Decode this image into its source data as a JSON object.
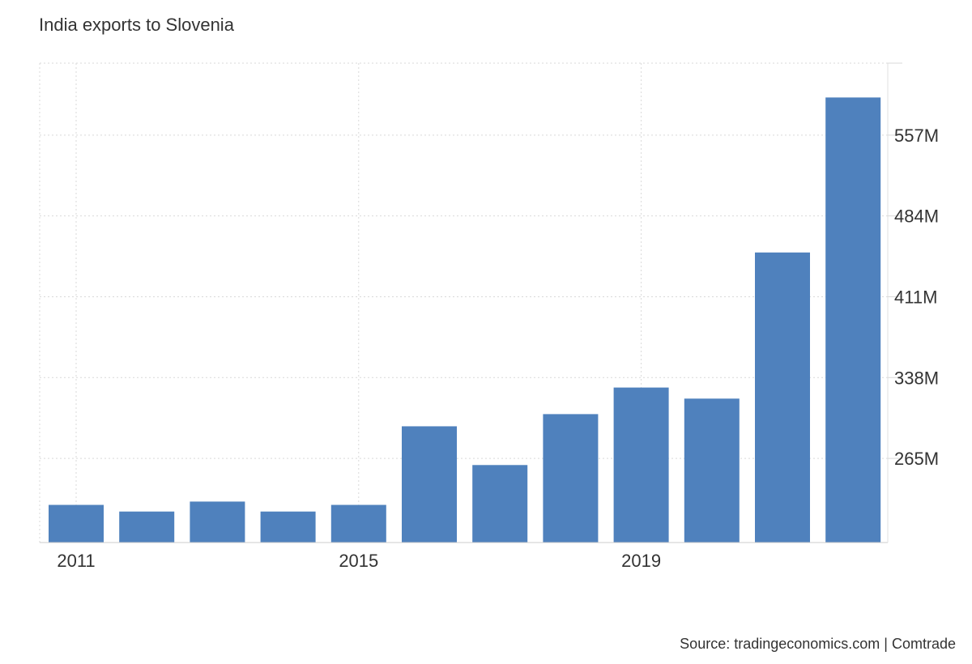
{
  "chart_data": {
    "type": "bar",
    "title": "India exports to Slovenia",
    "source": "Source: tradingeconomics.com | Comtrade",
    "x": [
      2011,
      2012,
      2013,
      2014,
      2015,
      2016,
      2017,
      2018,
      2019,
      2020,
      2021,
      2022
    ],
    "x_tick_labels": [
      "2011",
      "2015",
      "2019"
    ],
    "values": [
      223,
      217,
      226,
      217,
      223,
      294,
      259,
      305,
      329,
      319,
      451,
      591
    ],
    "y_ticks": [
      265,
      338,
      411,
      484,
      557
    ],
    "y_tick_labels": [
      "265M",
      "338M",
      "411M",
      "484M",
      "557M"
    ],
    "ylim": [
      189,
      622
    ],
    "xlabel": "",
    "ylabel": "",
    "grid": true,
    "y_axis_side": "right",
    "bar_color": "#4f81bd"
  }
}
